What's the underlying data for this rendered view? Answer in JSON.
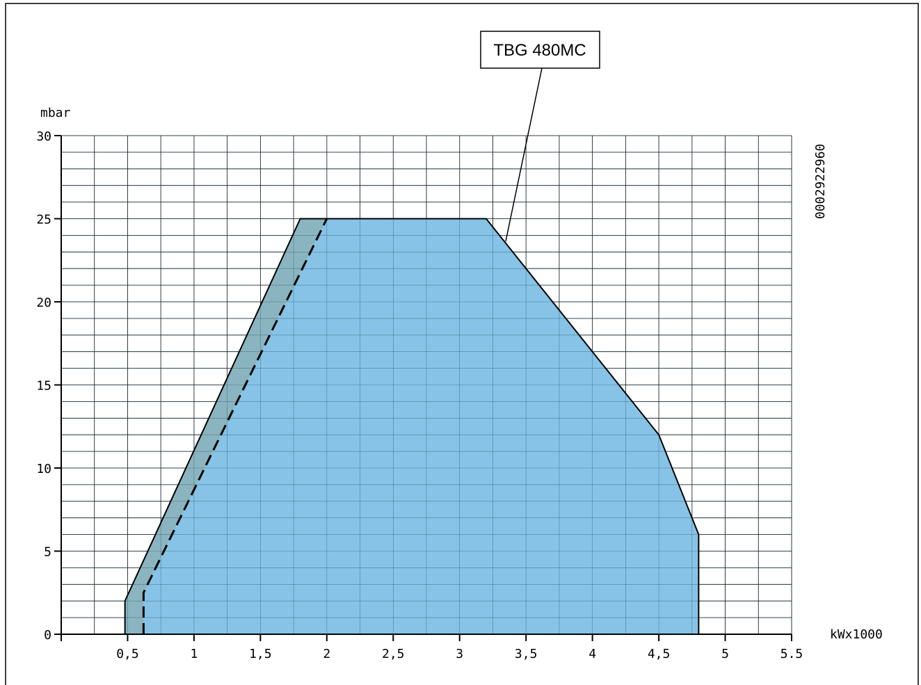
{
  "chart_data": {
    "type": "area",
    "title": "",
    "ylabel": "mbar",
    "xlabel": "kWx1000",
    "xlim": [
      0,
      5.5
    ],
    "ylim": [
      0,
      30
    ],
    "grid": true,
    "x_ticks": [
      0.5,
      1,
      1.5,
      2,
      2.5,
      3,
      3.5,
      4,
      4.5,
      5,
      5.5
    ],
    "x_tick_labels": [
      "0,5",
      "1",
      "1,5",
      "2",
      "2,5",
      "3",
      "3,5",
      "4",
      "4,5",
      "5",
      "5.5"
    ],
    "y_ticks": [
      0,
      5,
      10,
      15,
      20,
      25,
      30
    ],
    "y_tick_labels": [
      "0",
      "5",
      "10",
      "15",
      "20",
      "25",
      "30"
    ],
    "model_label": "TBG 480MC",
    "drawing_code": "0002922960",
    "colors": {
      "working_area": "#87c3e6",
      "extended_area": "#8ab5c0",
      "outline": "#000000",
      "grid": "#000000"
    },
    "series": [
      {
        "kind": "outer-envelope",
        "points": [
          [
            0.48,
            0
          ],
          [
            0.48,
            2
          ],
          [
            1.8,
            25
          ],
          [
            3.2,
            25
          ],
          [
            4.5,
            12
          ],
          [
            4.8,
            6
          ],
          [
            4.8,
            0
          ]
        ]
      },
      {
        "kind": "inner-boundary-dashed",
        "points": [
          [
            0.62,
            0
          ],
          [
            0.62,
            2.5
          ],
          [
            2.0,
            25
          ]
        ]
      }
    ]
  }
}
